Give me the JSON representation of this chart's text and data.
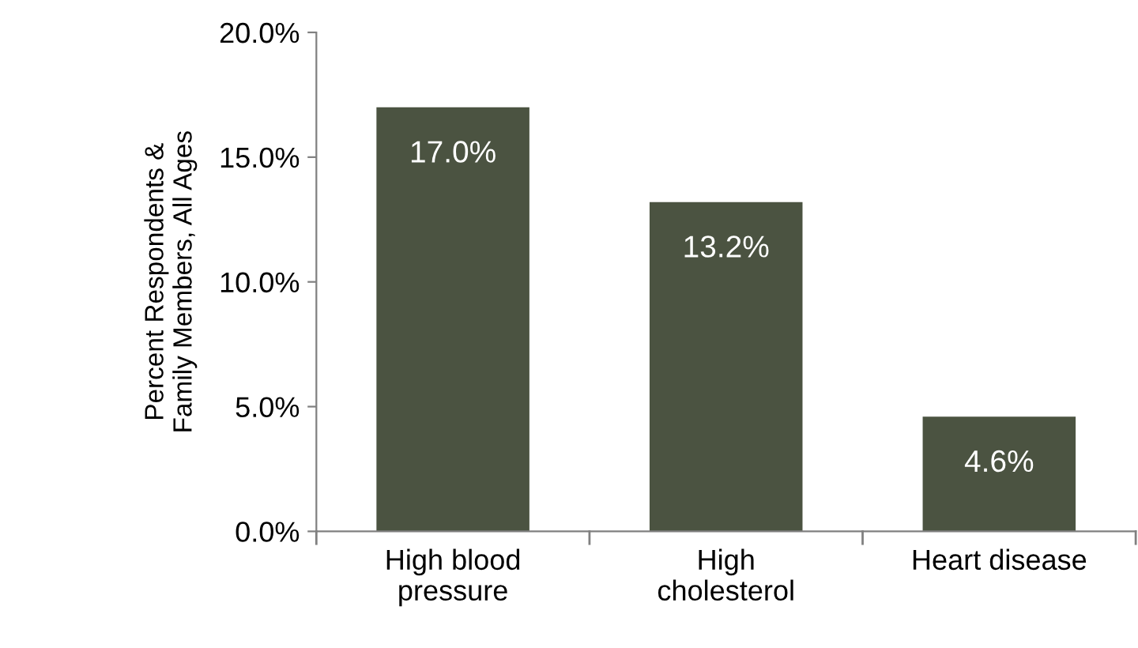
{
  "chart_data": {
    "type": "bar",
    "ylabel": "Percent Respondents &\nFamily Members, All Ages",
    "categories": [
      "High blood\npressure",
      "High\ncholesterol",
      "Heart disease"
    ],
    "values": [
      17.0,
      13.2,
      4.6
    ],
    "value_labels": [
      "17.0%",
      "13.2%",
      "4.6%"
    ],
    "color": "#4b5341",
    "ylim": [
      0,
      20
    ],
    "yticks": [
      {
        "value": 0,
        "label": "0.0%"
      },
      {
        "value": 5,
        "label": "5.0%"
      },
      {
        "value": 10,
        "label": "10.0%"
      },
      {
        "value": 15,
        "label": "15.0%"
      },
      {
        "value": 20,
        "label": "20.0%"
      }
    ],
    "grid": false,
    "legend": false
  }
}
